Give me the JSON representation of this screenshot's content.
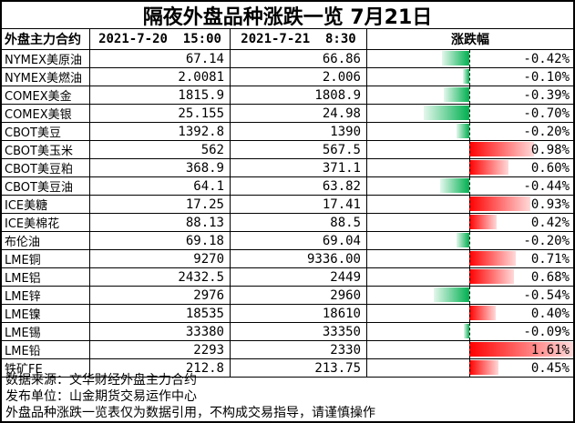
{
  "title": "隔夜外盘品种涨跌一览 7月21日",
  "table": {
    "headers": [
      "外盘主力合约",
      "2021-7-20  15:00",
      "2021-7-21  8:30",
      "涨跌幅"
    ],
    "rows": [
      {
        "name": "NYMEX美原油",
        "prev": "67.14",
        "curr": "66.86",
        "change": "-0.42%",
        "pct": -0.42
      },
      {
        "name": "NYMEX美燃油",
        "prev": "2.0081",
        "curr": "2.006",
        "change": "-0.10%",
        "pct": -0.1
      },
      {
        "name": "COMEX美金",
        "prev": "1815.9",
        "curr": "1808.9",
        "change": "-0.39%",
        "pct": -0.39
      },
      {
        "name": "COMEX美银",
        "prev": "25.155",
        "curr": "24.98",
        "change": "-0.70%",
        "pct": -0.7
      },
      {
        "name": "CBOT美豆",
        "prev": "1392.8",
        "curr": "1390",
        "change": "-0.20%",
        "pct": -0.2
      },
      {
        "name": "CBOT美玉米",
        "prev": "562",
        "curr": "567.5",
        "change": "0.98%",
        "pct": 0.98
      },
      {
        "name": "CBOT美豆粕",
        "prev": "368.9",
        "curr": "371.1",
        "change": "0.60%",
        "pct": 0.6
      },
      {
        "name": "CBOT美豆油",
        "prev": "64.1",
        "curr": "63.82",
        "change": "-0.44%",
        "pct": -0.44
      },
      {
        "name": "ICE美糖",
        "prev": "17.25",
        "curr": "17.41",
        "change": "0.93%",
        "pct": 0.93
      },
      {
        "name": "ICE美棉花",
        "prev": "88.13",
        "curr": "88.5",
        "change": "0.42%",
        "pct": 0.42
      },
      {
        "name": "布伦油",
        "prev": "69.18",
        "curr": "69.04",
        "change": "-0.20%",
        "pct": -0.2
      },
      {
        "name": "LME铜",
        "prev": "9270",
        "curr": "9336.00",
        "change": "0.71%",
        "pct": 0.71
      },
      {
        "name": "LME铝",
        "prev": "2432.5",
        "curr": "2449",
        "change": "0.68%",
        "pct": 0.68
      },
      {
        "name": "LME锌",
        "prev": "2976",
        "curr": "2960",
        "change": "-0.54%",
        "pct": -0.54
      },
      {
        "name": "LME镍",
        "prev": "18535",
        "curr": "18610",
        "change": "0.40%",
        "pct": 0.4
      },
      {
        "name": "LME锡",
        "prev": "33380",
        "curr": "33350",
        "change": "-0.09%",
        "pct": -0.09
      },
      {
        "name": "LME铅",
        "prev": "2293",
        "curr": "2330",
        "change": "1.61%",
        "pct": 1.61
      },
      {
        "name": "铁矿FE",
        "prev": "212.8",
        "curr": "213.75",
        "change": "0.45%",
        "pct": 0.45
      }
    ]
  },
  "footer": {
    "lines": [
      "数据来源：文华财经外盘主力合约",
      "发布单位：山金期货交易运作中心",
      "外盘品种涨跌一览表仅为数据引用，不构成交易指导，请谨慎操作"
    ]
  },
  "colors": {
    "positive_bar": "#ff0000",
    "positive_bar_light": "#ffd9d9",
    "negative_bar": "#00b050",
    "negative_bar_light": "#e4f7ec",
    "border": "#000000"
  },
  "chart_data": {
    "type": "table",
    "title": "隔夜外盘品种涨跌一览 7月21日",
    "categories": [
      "NYMEX美原油",
      "NYMEX美燃油",
      "COMEX美金",
      "COMEX美银",
      "CBOT美豆",
      "CBOT美玉米",
      "CBOT美豆粕",
      "CBOT美豆油",
      "ICE美糖",
      "ICE美棉花",
      "布伦油",
      "LME铜",
      "LME铝",
      "LME锌",
      "LME镍",
      "LME锡",
      "LME铅",
      "铁矿FE"
    ],
    "series": [
      {
        "name": "2021-7-20 15:00",
        "values": [
          67.14,
          2.0081,
          1815.9,
          25.155,
          1392.8,
          562,
          368.9,
          64.1,
          17.25,
          88.13,
          69.18,
          9270,
          2432.5,
          2976,
          18535,
          33380,
          2293,
          212.8
        ]
      },
      {
        "name": "2021-7-21 8:30",
        "values": [
          66.86,
          2.006,
          1808.9,
          24.98,
          1390,
          567.5,
          371.1,
          63.82,
          17.41,
          88.5,
          69.04,
          9336.0,
          2449,
          2960,
          18610,
          33350,
          2330,
          213.75
        ]
      },
      {
        "name": "涨跌幅(%)",
        "values": [
          -0.42,
          -0.1,
          -0.39,
          -0.7,
          -0.2,
          0.98,
          0.6,
          -0.44,
          0.93,
          0.42,
          -0.2,
          0.71,
          0.68,
          -0.54,
          0.4,
          -0.09,
          1.61,
          0.45
        ]
      }
    ],
    "layout_hints": {
      "databar_axis": "center of 涨跌幅 column, dashed vertical line",
      "databar_scale_pct_range": [
        -1.61,
        1.61
      ],
      "positive_color": "red gradient fading right",
      "negative_color": "green gradient fading left"
    }
  }
}
